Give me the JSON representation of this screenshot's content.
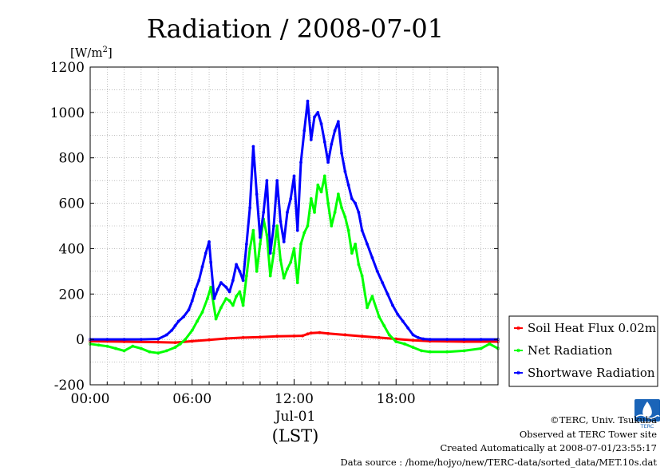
{
  "chart_data": {
    "type": "line",
    "title": "Radiation / 2008-07-01",
    "y_unit": "[W/m",
    "y_unit_sup": "2",
    "y_unit_close": "]",
    "ylim": [
      -200,
      1200
    ],
    "yticks": [
      "1200",
      "1000",
      "800",
      "600",
      "400",
      "200",
      "0",
      "-200"
    ],
    "xlim": [
      0,
      24
    ],
    "xticks": [
      {
        "hour": 0,
        "label": "00:00"
      },
      {
        "hour": 6,
        "label": "06:00"
      },
      {
        "hour": 12,
        "label": "12:00"
      },
      {
        "hour": 18,
        "label": "18:00"
      }
    ],
    "x_date_label": "Jul-01",
    "xlabel": "(LST)",
    "grid": true,
    "legend_position": "right",
    "series": [
      {
        "name": "Soil Heat Flux 0.02m",
        "color": "#ff0000",
        "x": [
          0,
          2,
          4,
          5,
          6,
          7,
          8,
          9,
          10,
          11,
          12,
          12.5,
          12.8,
          13,
          13.5,
          14,
          15,
          16,
          17,
          18,
          19,
          20,
          22,
          24
        ],
        "y": [
          -8,
          -10,
          -12,
          -14,
          -8,
          -2,
          4,
          8,
          10,
          14,
          15,
          16,
          24,
          28,
          30,
          26,
          20,
          14,
          8,
          2,
          -4,
          -8,
          -10,
          -10
        ]
      },
      {
        "name": "Net Radiation",
        "color": "#00ff00",
        "x": [
          0,
          0.5,
          1,
          1.5,
          2,
          2.5,
          3,
          3.5,
          4,
          4.5,
          5,
          5.3,
          5.6,
          6,
          6.3,
          6.6,
          6.9,
          7.1,
          7.4,
          7.7,
          8,
          8.2,
          8.4,
          8.6,
          8.8,
          9,
          9.2,
          9.4,
          9.6,
          9.8,
          10,
          10.2,
          10.4,
          10.6,
          10.8,
          11,
          11.2,
          11.4,
          11.6,
          11.8,
          12,
          12.2,
          12.4,
          12.6,
          12.8,
          13,
          13.2,
          13.4,
          13.6,
          13.8,
          14,
          14.2,
          14.4,
          14.6,
          14.8,
          15,
          15.2,
          15.4,
          15.6,
          15.8,
          16,
          16.3,
          16.6,
          17,
          17.3,
          17.6,
          18,
          18.5,
          19,
          19.5,
          20,
          21,
          22,
          23,
          23.5,
          24
        ],
        "y": [
          -20,
          -25,
          -30,
          -40,
          -50,
          -30,
          -40,
          -55,
          -60,
          -50,
          -35,
          -20,
          0,
          40,
          80,
          120,
          180,
          230,
          90,
          140,
          180,
          170,
          150,
          190,
          210,
          150,
          280,
          400,
          480,
          300,
          420,
          530,
          460,
          280,
          380,
          500,
          350,
          270,
          310,
          340,
          400,
          250,
          420,
          470,
          500,
          620,
          560,
          680,
          650,
          720,
          600,
          500,
          560,
          640,
          580,
          540,
          480,
          380,
          420,
          330,
          280,
          140,
          190,
          100,
          60,
          20,
          -10,
          -20,
          -35,
          -50,
          -55,
          -55,
          -50,
          -40,
          -20,
          -40
        ]
      },
      {
        "name": "Shortwave Radiation",
        "color": "#0000ff",
        "x": [
          0,
          1,
          2,
          3,
          4,
          4.5,
          4.8,
          5,
          5.2,
          5.5,
          5.8,
          6,
          6.2,
          6.4,
          6.6,
          6.8,
          7,
          7.1,
          7.3,
          7.5,
          7.7,
          8,
          8.2,
          8.4,
          8.6,
          8.8,
          9,
          9.2,
          9.4,
          9.6,
          9.8,
          10,
          10.2,
          10.4,
          10.6,
          10.8,
          11,
          11.2,
          11.4,
          11.6,
          11.8,
          12,
          12.2,
          12.4,
          12.6,
          12.8,
          13,
          13.2,
          13.4,
          13.6,
          13.8,
          14,
          14.2,
          14.4,
          14.6,
          14.8,
          15,
          15.2,
          15.4,
          15.6,
          15.8,
          16,
          16.3,
          16.6,
          16.9,
          17.2,
          17.5,
          17.8,
          18.1,
          18.4,
          18.7,
          19,
          19.3,
          19.6,
          20,
          21,
          22,
          23,
          24
        ],
        "y": [
          0,
          0,
          0,
          0,
          2,
          20,
          40,
          60,
          80,
          100,
          130,
          170,
          220,
          260,
          320,
          380,
          430,
          340,
          180,
          220,
          250,
          230,
          210,
          260,
          330,
          300,
          260,
          420,
          580,
          850,
          640,
          450,
          560,
          700,
          380,
          500,
          700,
          520,
          430,
          560,
          620,
          720,
          480,
          780,
          920,
          1050,
          880,
          980,
          1000,
          950,
          870,
          780,
          860,
          920,
          960,
          820,
          740,
          680,
          620,
          600,
          560,
          480,
          420,
          360,
          300,
          250,
          200,
          150,
          110,
          80,
          50,
          20,
          8,
          2,
          0,
          0,
          0,
          0,
          0
        ]
      }
    ]
  },
  "footer": {
    "copyright": "©TERC, Univ. Tsukuba",
    "site": "Observed at TERC Tower site",
    "created": "Created Automatically at 2008-07-01/23:55:17",
    "source": "Data source : /home/hojyo/new/TERC-data/sorted_data/MET.10s.dat",
    "logo_text": "TERC"
  }
}
